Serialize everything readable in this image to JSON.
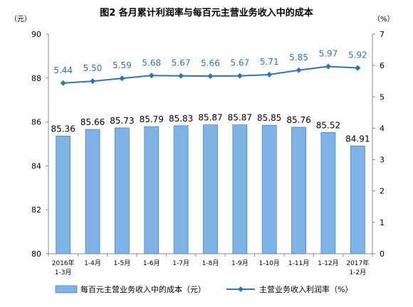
{
  "chart_data": {
    "type": "bar",
    "title": "图2  各月累计利润率与每百元主营业务收入中的成本",
    "left_unit": "（元）",
    "right_unit": "（%）",
    "categories": [
      [
        "2016年",
        "1-3月"
      ],
      [
        "1-4月"
      ],
      [
        "1-5月"
      ],
      [
        "1-6月"
      ],
      [
        "1-7月"
      ],
      [
        "1-8月"
      ],
      [
        "1-9月"
      ],
      [
        "1-10月"
      ],
      [
        "1-11月"
      ],
      [
        "1-12月"
      ],
      [
        "2017年",
        "1-2月"
      ]
    ],
    "left_axis": {
      "ylim": [
        80,
        90
      ],
      "ticks": [
        "80",
        "82",
        "84",
        "86",
        "88",
        "90"
      ]
    },
    "right_axis": {
      "ylim": [
        0,
        7
      ],
      "ticks": [
        "0",
        "1",
        "2",
        "3",
        "4",
        "5",
        "6",
        "7"
      ]
    },
    "series": [
      {
        "name": "每百元主营业务收入中的成本（元）",
        "kind": "bar",
        "axis": "left",
        "values": [
          85.36,
          85.66,
          85.73,
          85.79,
          85.83,
          85.87,
          85.87,
          85.85,
          85.76,
          85.52,
          84.91
        ],
        "labels": [
          "85.36",
          "85.66",
          "85.73",
          "85.79",
          "85.83",
          "85.87",
          "85.87",
          "85.85",
          "85.76",
          "85.52",
          "84.91"
        ],
        "color": "#7fb2e5"
      },
      {
        "name": "主营业务收入利润率（%）",
        "kind": "line",
        "axis": "right",
        "values": [
          5.44,
          5.5,
          5.59,
          5.68,
          5.67,
          5.66,
          5.67,
          5.71,
          5.85,
          5.97,
          5.92
        ],
        "labels": [
          "5.44",
          "5.50",
          "5.59",
          "5.68",
          "5.67",
          "5.66",
          "5.67",
          "5.71",
          "5.85",
          "5.97",
          "5.92"
        ],
        "color": "#2e75b6"
      }
    ],
    "grid": false,
    "legend_position": "bottom"
  }
}
